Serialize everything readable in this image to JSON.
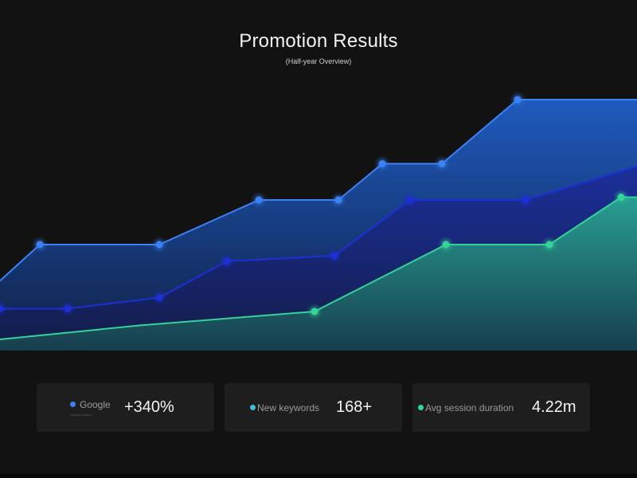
{
  "header": {
    "title": "Promotion Results",
    "subtitle": "(Half-year Overview)"
  },
  "cards": [
    {
      "label": "Google",
      "sublabel": "Organic search",
      "value": "+340%",
      "dot_color": "#3b82f6"
    },
    {
      "label": "New keywords",
      "value": "168+",
      "dot_color": "#3bbfe0"
    },
    {
      "label": "Avg session duration",
      "value": "4.22m",
      "dot_color": "#34d399"
    }
  ],
  "chart_data": {
    "type": "area",
    "title": "Promotion Results",
    "subtitle": "(Half-year Overview)",
    "xlabel": "",
    "ylabel": "",
    "x": [
      0,
      1,
      2,
      3,
      4,
      5,
      6,
      7,
      8,
      9,
      10,
      11,
      12,
      13,
      14,
      15,
      16
    ],
    "ylim": [
      0,
      100
    ],
    "grid": false,
    "legend": "none",
    "series": [
      {
        "color": "#3b82f6",
        "x": [
          0,
          1,
          4,
          6.5,
          8.5,
          9.6,
          11.1,
          13,
          16
        ],
        "values": [
          25,
          38,
          38,
          54,
          54,
          67,
          67,
          90,
          90
        ],
        "markers": [
          1,
          4,
          6.5,
          8.5,
          9.6,
          11.1,
          13
        ]
      },
      {
        "color": "#1d2fd6",
        "x": [
          0,
          1.7,
          4,
          5.7,
          8.4,
          10.3,
          13.2,
          16
        ],
        "values": [
          15,
          15,
          19,
          32,
          34,
          54,
          54,
          66
        ],
        "markers": [
          0,
          1.7,
          4,
          5.7,
          8.4,
          10.3,
          13.2
        ]
      },
      {
        "color": "#34d399",
        "x": [
          0,
          3.5,
          7.9,
          11.2,
          13.8,
          15.6,
          16
        ],
        "values": [
          4,
          9,
          14,
          38,
          38,
          55,
          55
        ],
        "markers": [
          7.9,
          11.2,
          13.8,
          15.6
        ]
      }
    ]
  }
}
